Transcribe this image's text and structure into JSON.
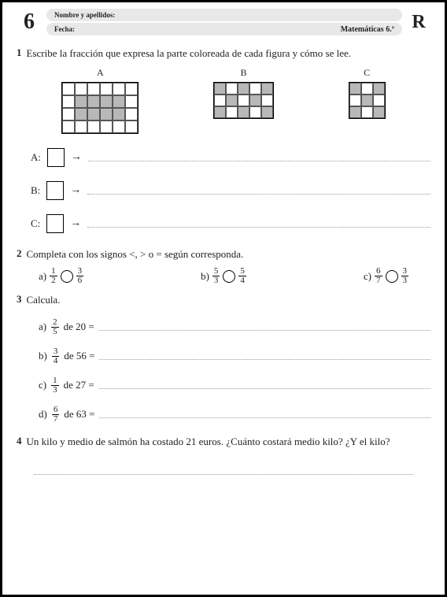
{
  "header": {
    "page_number": "6",
    "name_label": "Nombre y apellidos:",
    "date_label": "Fecha:",
    "subject": "Matemáticas 6.º",
    "badge": "R"
  },
  "q1": {
    "num": "1",
    "text": "Escribe la fracción que expresa la parte coloreada de cada figura y cómo se lee.",
    "labels": {
      "a": "A",
      "b": "B",
      "c": "C"
    },
    "answers": {
      "a": "A:",
      "b": "B:",
      "c": "C:"
    },
    "arrow": "→",
    "gridA": {
      "cell": 16,
      "cols": 6,
      "rows": 4,
      "pattern": [
        [
          0,
          0,
          0,
          0,
          0,
          0
        ],
        [
          0,
          1,
          1,
          1,
          1,
          0
        ],
        [
          0,
          1,
          1,
          1,
          1,
          0
        ],
        [
          0,
          0,
          0,
          0,
          0,
          0
        ]
      ]
    },
    "gridB": {
      "cell": 15,
      "cols": 5,
      "rows": 3,
      "pattern": [
        [
          1,
          0,
          1,
          0,
          1
        ],
        [
          0,
          1,
          0,
          1,
          0
        ],
        [
          1,
          0,
          1,
          0,
          1
        ]
      ]
    },
    "gridC": {
      "cell": 15,
      "cols": 3,
      "rows": 3,
      "pattern": [
        [
          1,
          0,
          1
        ],
        [
          0,
          1,
          0
        ],
        [
          1,
          0,
          1
        ]
      ]
    }
  },
  "q2": {
    "num": "2",
    "text": "Completa con los signos <, > o = según corresponda.",
    "items": [
      {
        "label": "a)",
        "l_num": "1",
        "l_den": "2",
        "r_num": "3",
        "r_den": "6"
      },
      {
        "label": "b)",
        "l_num": "5",
        "l_den": "3",
        "r_num": "5",
        "r_den": "4"
      },
      {
        "label": "c)",
        "l_num": "6",
        "l_den": "7",
        "r_num": "3",
        "r_den": "3"
      }
    ]
  },
  "q3": {
    "num": "3",
    "text": "Calcula.",
    "items": [
      {
        "label": "a)",
        "num": "2",
        "den": "5",
        "of": "de 20 ="
      },
      {
        "label": "b)",
        "num": "3",
        "den": "4",
        "of": "de 56 ="
      },
      {
        "label": "c)",
        "num": "1",
        "den": "3",
        "of": "de 27 ="
      },
      {
        "label": "d)",
        "num": "6",
        "den": "7",
        "of": "de 63 ="
      }
    ]
  },
  "q4": {
    "num": "4",
    "text": "Un kilo y medio de salmón ha costado 21 euros. ¿Cuánto costará medio kilo? ¿Y el kilo?"
  }
}
